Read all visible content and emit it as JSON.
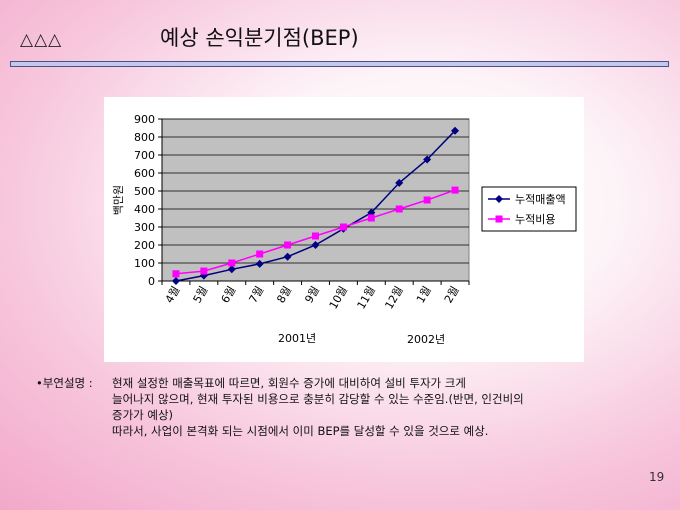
{
  "slide": {
    "logo_text": "△△△",
    "title": "예상 손익분기점(BEP)",
    "page_number": "19"
  },
  "note": {
    "lead": "•부연설명 :",
    "lines": [
      "현재 설정한 매출목표에 따르면, 회원수 증가에 대비하여 설비 투자가 크게",
      "늘어나지 않으며, 현재 투자된 비용으로 충분히 감당할 수 있는 수준임.(반면, 인건비의",
      "증가가 예상)",
      "따라서, 사업이 본격화 되는 시점에서 이미 BEP를 달성할 수 있을 것으로 예상."
    ]
  },
  "chart_data": {
    "type": "line",
    "categories": [
      "4월",
      "5월",
      "6월",
      "7월",
      "8월",
      "9월",
      "10월",
      "11월",
      "12월",
      "1월",
      "2월"
    ],
    "year_labels": [
      "2001년",
      "2002년"
    ],
    "ylabel": "백만원",
    "ylim": [
      0,
      900
    ],
    "yticks": [
      0,
      100,
      200,
      300,
      400,
      500,
      600,
      700,
      800,
      900
    ],
    "grid": true,
    "plot_background": "#c0c0c0",
    "legend_position": "right",
    "series": [
      {
        "name": "누적매출액",
        "color": "#000080",
        "marker": "diamond",
        "values": [
          0,
          30,
          65,
          95,
          135,
          200,
          290,
          380,
          545,
          675,
          835
        ]
      },
      {
        "name": "누적비용",
        "color": "#ff00ff",
        "marker": "square",
        "values": [
          40,
          55,
          100,
          150,
          200,
          250,
          300,
          350,
          400,
          450,
          505
        ]
      }
    ]
  }
}
